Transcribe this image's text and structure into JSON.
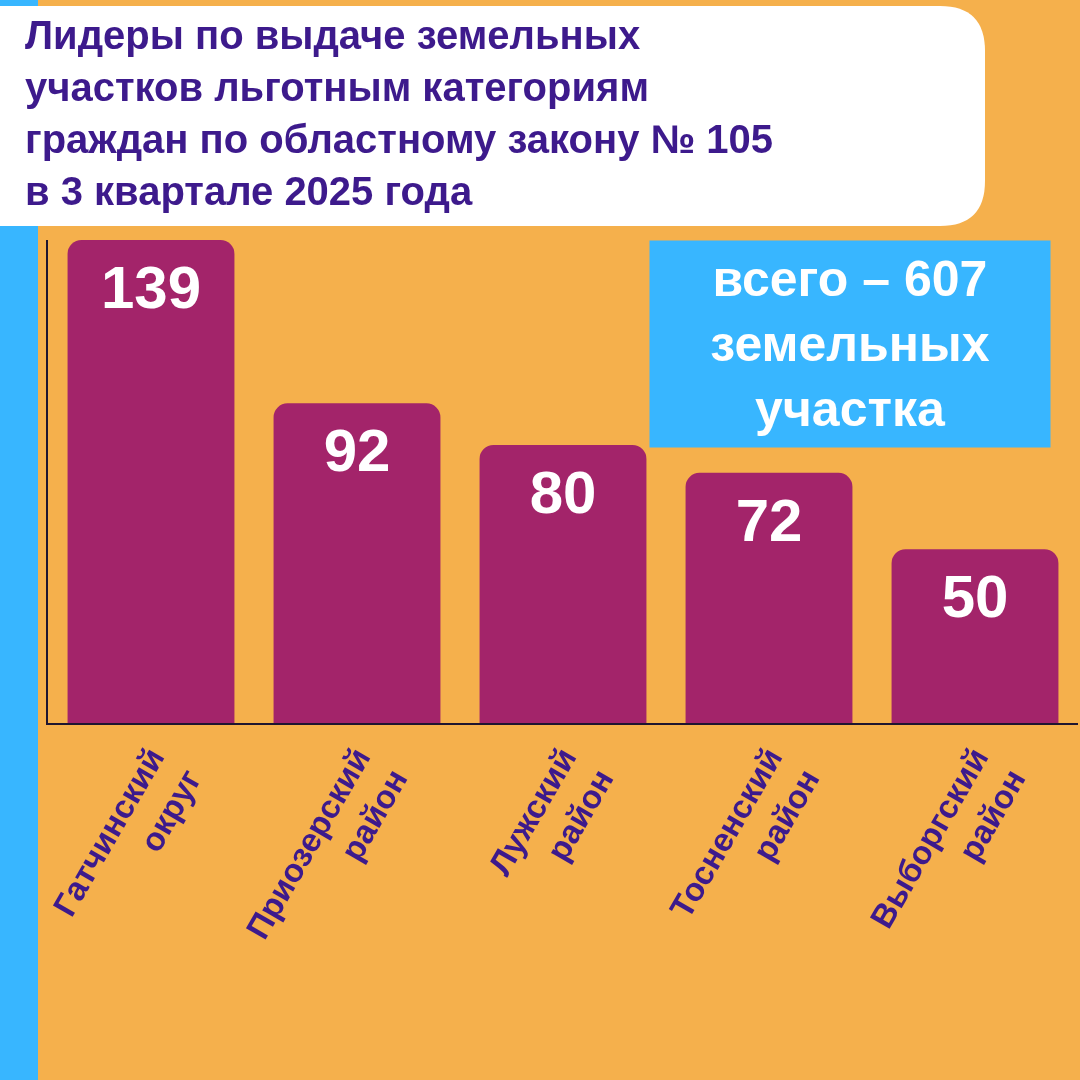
{
  "chart_data": {
    "type": "bar",
    "title": "Лидеры по выдаче земельных участков льготным категориям граждан по областному закону № 105 в 3 квартале 2025 года",
    "categories": [
      "Гатчинский округ",
      "Приозерский район",
      "Лужский район",
      "Тосненский район",
      "Выборгский район"
    ],
    "values": [
      139,
      92,
      80,
      72,
      50
    ],
    "color": "#a3246a",
    "data_labels": true,
    "tick_labels": "x",
    "annotations": [
      "всего – 607 земельных участка"
    ]
  }
}
